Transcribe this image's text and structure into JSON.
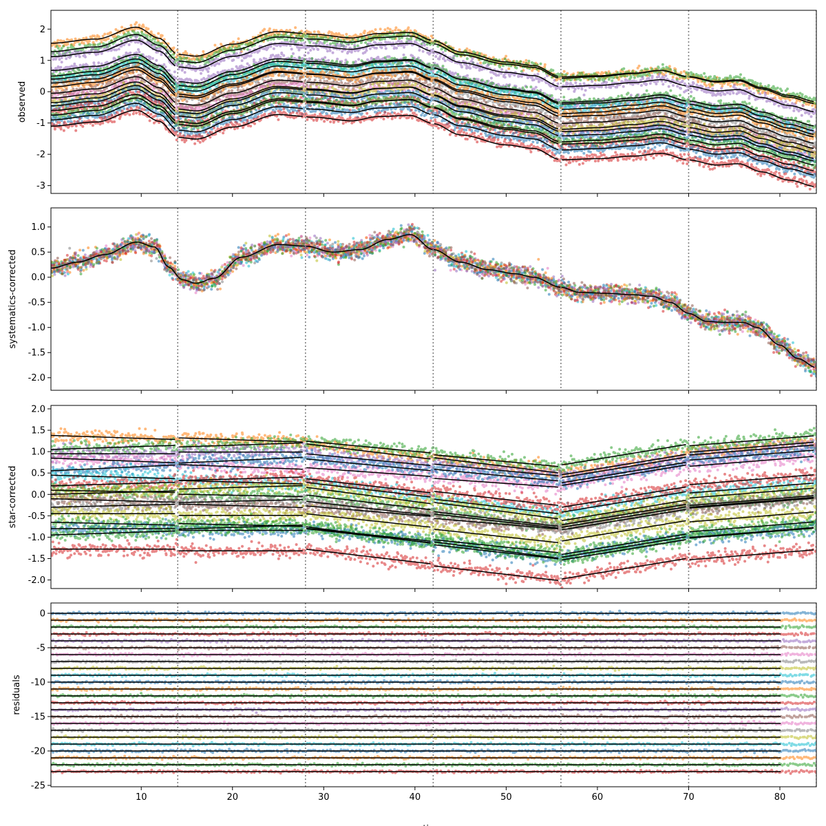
{
  "figure": {
    "shared_xlabel": "time"
  },
  "colors": {
    "tab": [
      "#1f77b4",
      "#ff7f0e",
      "#2ca02c",
      "#d62728",
      "#9467bd",
      "#8c564b",
      "#e377c2",
      "#7f7f7f",
      "#bcbd22",
      "#17becf"
    ],
    "fit_line": "#000000",
    "boundary_line": "#808080"
  },
  "chart_data": [
    {
      "type": "scatter",
      "panel": "observed",
      "ylabel": "observed",
      "xlim": [
        0.1,
        84
      ],
      "ylim": [
        -3.25,
        2.6
      ],
      "xticks": [
        10,
        20,
        30,
        40,
        50,
        60,
        70,
        80
      ],
      "yticks": [
        2,
        1,
        0,
        -1,
        -2,
        -3
      ],
      "boundaries": [
        14,
        28,
        42,
        56,
        70,
        84
      ],
      "series_offsets": [
        1.55,
        1.28,
        1.12,
        0.68,
        0.5,
        0.4,
        0.28,
        0.15,
        -0.05,
        -0.2,
        -0.35,
        -0.45,
        -0.6,
        -0.75,
        -0.9,
        -1.1
      ],
      "series_color_index": [
        1,
        2,
        4,
        4,
        2,
        9,
        7,
        1,
        5,
        6,
        8,
        0,
        3,
        2,
        0,
        3
      ],
      "trend": {
        "x": [
          0.1,
          5,
          9.5,
          12,
          14,
          16,
          20,
          25,
          29,
          33,
          36,
          39.5,
          42,
          45,
          50,
          53,
          56,
          60,
          64,
          67,
          70,
          73,
          75.5,
          78,
          81,
          84
        ],
        "y": [
          0.0,
          0.15,
          0.55,
          0.2,
          -0.3,
          -0.35,
          0.05,
          0.47,
          0.4,
          0.3,
          0.45,
          0.5,
          0.25,
          -0.1,
          -0.4,
          -0.5,
          -0.85,
          -0.8,
          -0.7,
          -0.6,
          -0.8,
          -0.95,
          -0.9,
          -1.15,
          -1.4,
          -1.6
        ]
      }
    },
    {
      "type": "scatter",
      "panel": "systematics-corrected",
      "ylabel": "systematics-corrected",
      "xlim": [
        0.1,
        84
      ],
      "ylim": [
        -2.25,
        1.38
      ],
      "xticks": [
        10,
        20,
        30,
        40,
        50,
        60,
        70,
        80
      ],
      "yticks": [
        1.0,
        0.5,
        0.0,
        -0.5,
        -1.0,
        -1.5,
        -2.0
      ],
      "boundaries": [
        14,
        28,
        42,
        56,
        70,
        84
      ],
      "series_count": 16,
      "trend": {
        "x": [
          0.1,
          3,
          6,
          9.5,
          11.5,
          13,
          14.5,
          16,
          18,
          21,
          25,
          28,
          31,
          34,
          37,
          39.5,
          42,
          45,
          48,
          51,
          53,
          56,
          58,
          61,
          64,
          66,
          68,
          70,
          72,
          74,
          76,
          77.5,
          80,
          82,
          84
        ],
        "y": [
          0.18,
          0.3,
          0.45,
          0.7,
          0.6,
          0.2,
          -0.05,
          -0.12,
          -0.02,
          0.4,
          0.65,
          0.62,
          0.5,
          0.55,
          0.75,
          0.85,
          0.55,
          0.3,
          0.15,
          0.07,
          0.0,
          -0.2,
          -0.3,
          -0.32,
          -0.35,
          -0.38,
          -0.5,
          -0.72,
          -0.88,
          -0.9,
          -0.9,
          -1.0,
          -1.35,
          -1.62,
          -1.8
        ]
      }
    },
    {
      "type": "scatter",
      "panel": "star-corrected",
      "ylabel": "star-corrected",
      "xlim": [
        0.1,
        84
      ],
      "ylim": [
        -2.2,
        2.08
      ],
      "xticks": [
        10,
        20,
        30,
        40,
        50,
        60,
        70,
        80
      ],
      "yticks": [
        2.0,
        1.5,
        1.0,
        0.5,
        0.0,
        -0.5,
        -1.0,
        -1.5,
        -2.0
      ],
      "boundaries": [
        14,
        28,
        42,
        56,
        70,
        84
      ],
      "series_offsets": [
        1.38,
        1.05,
        0.95,
        0.85,
        0.55,
        0.45,
        0.2,
        0.1,
        0.0,
        -0.1,
        -0.3,
        -0.45,
        -0.65,
        -0.8,
        -0.95,
        -1.28
      ],
      "series_color_index": [
        1,
        2,
        4,
        6,
        0,
        9,
        3,
        2,
        8,
        5,
        7,
        8,
        2,
        0,
        2,
        3
      ],
      "slopes": [
        [
          -0.007,
          -0.026
        ],
        [
          0.007,
          -0.02
        ],
        [
          0.0,
          -0.02
        ],
        [
          -0.008,
          -0.015
        ],
        [
          0.01,
          -0.02
        ],
        [
          -0.006,
          -0.025
        ],
        [
          0.006,
          -0.024
        ],
        [
          -0.004,
          -0.025
        ],
        [
          0.006,
          -0.028
        ],
        [
          -0.006,
          -0.018
        ],
        [
          0.005,
          -0.024
        ],
        [
          0.0,
          -0.023
        ],
        [
          -0.005,
          -0.022
        ],
        [
          0.0,
          -0.024
        ],
        [
          0.007,
          -0.028
        ],
        [
          0.0,
          -0.025
        ]
      ],
      "rise_rate": 0.035,
      "rise_rate_late": 0.017
    },
    {
      "type": "scatter",
      "panel": "residuals",
      "ylabel": "residuals",
      "xlabel": "time",
      "xlim": [
        0.1,
        84
      ],
      "ylim": [
        -25.2,
        1.5
      ],
      "xticks": [
        10,
        20,
        30,
        40,
        50,
        60,
        70,
        80
      ],
      "yticks": [
        0,
        -5,
        -10,
        -15,
        -20,
        -25
      ],
      "boundaries": [
        14,
        28,
        42,
        56,
        70,
        84
      ],
      "series_levels": [
        0,
        -1,
        -2,
        -3,
        -4,
        -5,
        -6,
        -7,
        -8,
        -9,
        -10,
        -11,
        -12,
        -13,
        -14,
        -15,
        -16,
        -17,
        -18,
        -19,
        -20,
        -21,
        -22,
        -23
      ],
      "series_color_index": [
        0,
        1,
        2,
        3,
        4,
        5,
        6,
        7,
        8,
        9,
        0,
        1,
        2,
        3,
        4,
        5,
        6,
        7,
        8,
        9,
        0,
        1,
        2,
        3
      ]
    }
  ]
}
